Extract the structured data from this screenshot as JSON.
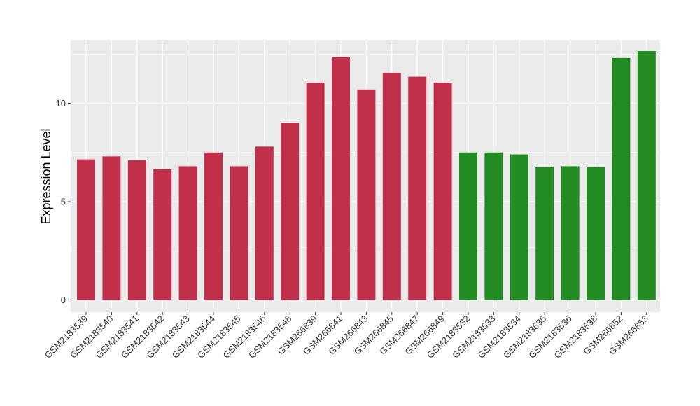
{
  "chart_data": {
    "type": "bar",
    "ylabel": "Expression Level",
    "xlabel": "",
    "ylim": [
      0,
      13
    ],
    "yticks": [
      0,
      5,
      10
    ],
    "grid": true,
    "categories": [
      "GSM2183539",
      "GSM2183540",
      "GSM2183541",
      "GSM2183542",
      "GSM2183543",
      "GSM2183544",
      "GSM2183545",
      "GSM2183546",
      "GSM2183548",
      "GSM266839",
      "GSM266841",
      "GSM266843",
      "GSM266845",
      "GSM266847",
      "GSM266849",
      "GSM2183532",
      "GSM2183533",
      "GSM2183534",
      "GSM2183535",
      "GSM2183536",
      "GSM2183538",
      "GSM266852",
      "GSM266853"
    ],
    "values": [
      7.15,
      7.3,
      7.1,
      6.65,
      6.8,
      7.5,
      6.8,
      7.8,
      9.0,
      11.05,
      12.35,
      10.7,
      11.55,
      11.35,
      11.05,
      7.5,
      7.5,
      7.4,
      6.75,
      6.8,
      6.75,
      12.3,
      12.65
    ],
    "bar_colors": [
      "#c0304a",
      "#c0304a",
      "#c0304a",
      "#c0304a",
      "#c0304a",
      "#c0304a",
      "#c0304a",
      "#c0304a",
      "#c0304a",
      "#c0304a",
      "#c0304a",
      "#c0304a",
      "#c0304a",
      "#c0304a",
      "#c0304a",
      "#228b22",
      "#228b22",
      "#228b22",
      "#228b22",
      "#228b22",
      "#228b22",
      "#228b22",
      "#228b22"
    ],
    "panel_color": "#ebebeb",
    "grid_color": "#ffffff"
  }
}
